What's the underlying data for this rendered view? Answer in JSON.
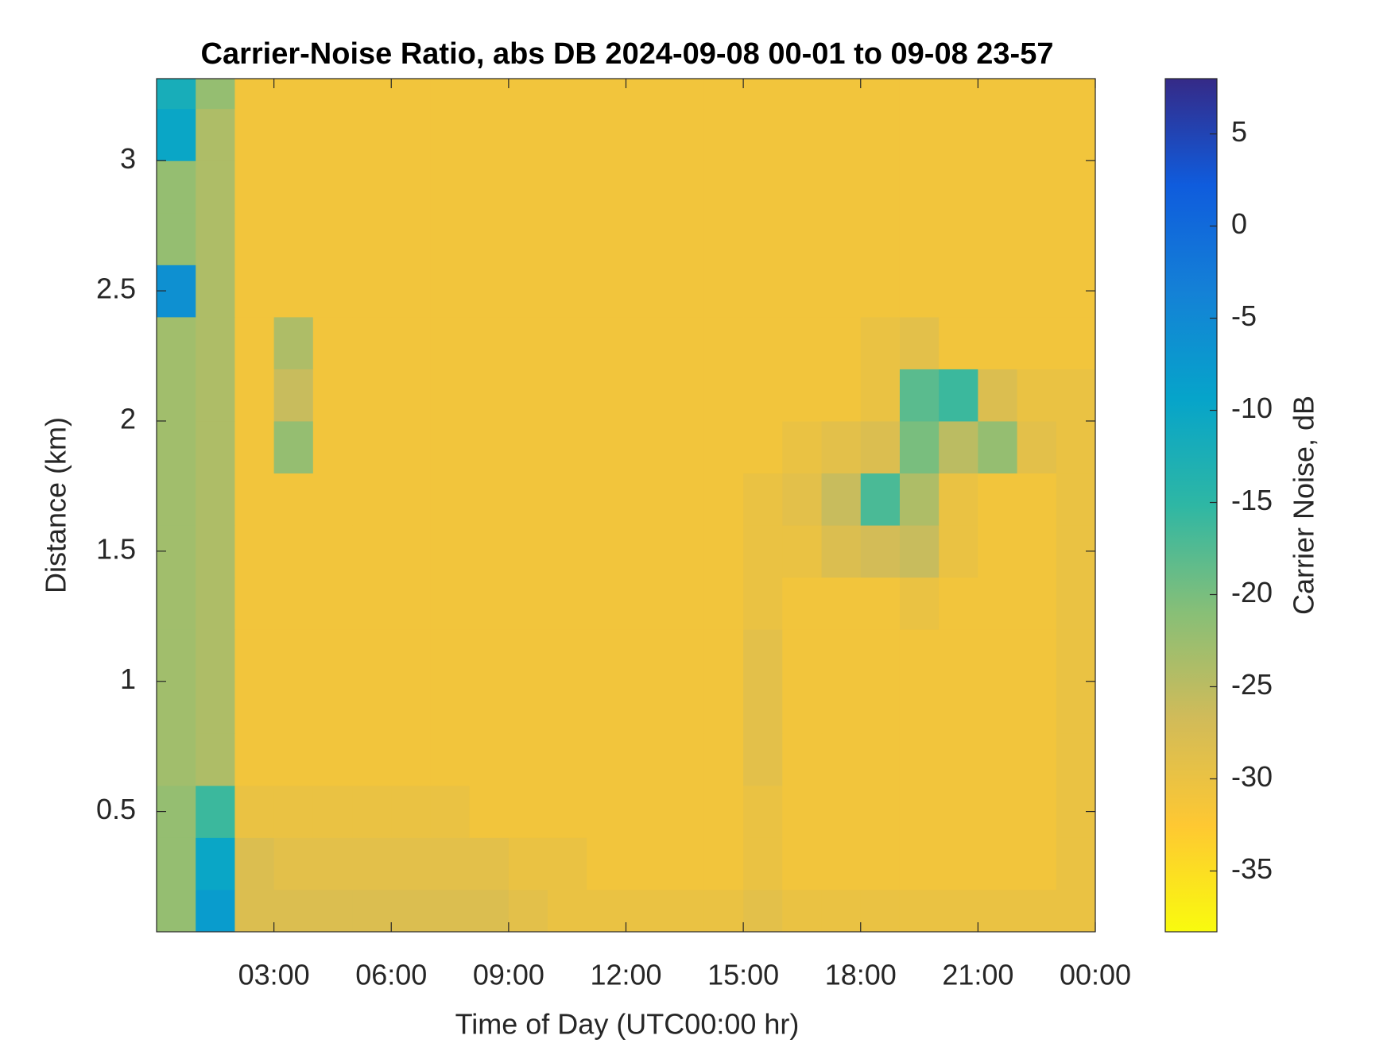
{
  "chart_data": {
    "type": "heatmap",
    "title": "Carrier-Noise Ratio, abs DB 2024-09-08 00-01 to 09-08 23-57",
    "x_label": "Time of Day (UTC00:00 hr)",
    "y_label": "Distance (km)",
    "colorbar_label": "Carrier Noise, dB",
    "x": [
      0.5,
      1.5,
      2.5,
      3.5,
      4.5,
      5.5,
      6.5,
      7.5,
      8.5,
      9.5,
      10.5,
      11.5,
      12.5,
      13.5,
      14.5,
      15.5,
      16.5,
      17.5,
      18.5,
      19.5,
      20.5,
      21.5,
      22.5,
      23.5
    ],
    "y": [
      0.1,
      0.3,
      0.5,
      0.7,
      0.9,
      1.1,
      1.3,
      1.5,
      1.7,
      1.9,
      2.1,
      2.3,
      2.5,
      2.7,
      2.9,
      3.1,
      3.3
    ],
    "z": [
      [
        -22,
        -8,
        -28,
        -28,
        -28,
        -28,
        -28,
        -28,
        -28,
        -29,
        -30,
        -30,
        -30,
        -30,
        -30,
        -29,
        -30,
        -30,
        -30,
        -30,
        -30,
        -30,
        -30,
        -30
      ],
      [
        -22,
        -10,
        -28,
        -29,
        -29,
        -29,
        -29,
        -29,
        -29,
        -30,
        -30,
        -31,
        -31,
        -31,
        -31,
        -30,
        -31,
        -31,
        -31,
        -31,
        -31,
        -31,
        -31,
        -30
      ],
      [
        -22,
        -16,
        -30,
        -30,
        -30,
        -30,
        -30,
        -30,
        -31,
        -31,
        -31,
        -31,
        -31,
        -31,
        -31,
        -30,
        -31,
        -31,
        -31,
        -31,
        -31,
        -31,
        -31,
        -30
      ],
      [
        -23,
        -24,
        -31,
        -31,
        -31,
        -31,
        -31,
        -31,
        -31,
        -31,
        -31,
        -31,
        -31,
        -31,
        -31,
        -29,
        -31,
        -31,
        -31,
        -31,
        -31,
        -31,
        -31,
        -30
      ],
      [
        -23,
        -24,
        -31,
        -31,
        -31,
        -31,
        -31,
        -31,
        -31,
        -31,
        -31,
        -31,
        -31,
        -31,
        -31,
        -29,
        -31,
        -31,
        -31,
        -31,
        -31,
        -31,
        -31,
        -30
      ],
      [
        -23,
        -24,
        -31,
        -31,
        -31,
        -31,
        -31,
        -31,
        -31,
        -31,
        -31,
        -31,
        -31,
        -31,
        -31,
        -29,
        -31,
        -31,
        -31,
        -31,
        -31,
        -31,
        -31,
        -30
      ],
      [
        -23,
        -24,
        -31,
        -31,
        -31,
        -31,
        -31,
        -31,
        -31,
        -31,
        -31,
        -31,
        -31,
        -31,
        -31,
        -30,
        -31,
        -31,
        -31,
        -30,
        -31,
        -31,
        -31,
        -30
      ],
      [
        -23,
        -24,
        -31,
        -31,
        -31,
        -31,
        -31,
        -31,
        -31,
        -31,
        -31,
        -31,
        -31,
        -31,
        -31,
        -30,
        -30,
        -28,
        -27,
        -26,
        -30,
        -31,
        -31,
        -30
      ],
      [
        -23,
        -24,
        -31,
        -31,
        -31,
        -31,
        -31,
        -31,
        -31,
        -31,
        -31,
        -31,
        -31,
        -31,
        -31,
        -30,
        -29,
        -26,
        -17,
        -24,
        -30,
        -31,
        -31,
        -30
      ],
      [
        -23,
        -24,
        -31,
        -22,
        -31,
        -31,
        -31,
        -31,
        -31,
        -31,
        -31,
        -31,
        -31,
        -31,
        -31,
        -31,
        -30,
        -29,
        -28,
        -20,
        -25,
        -22,
        -29,
        -30
      ],
      [
        -23,
        -24,
        -31,
        -26,
        -31,
        -31,
        -31,
        -31,
        -31,
        -31,
        -31,
        -31,
        -31,
        -31,
        -31,
        -31,
        -31,
        -31,
        -30,
        -18,
        -16,
        -28,
        -30,
        -30
      ],
      [
        -23,
        -24,
        -31,
        -24,
        -31,
        -31,
        -31,
        -31,
        -31,
        -31,
        -31,
        -31,
        -31,
        -31,
        -31,
        -31,
        -31,
        -31,
        -30,
        -29,
        -31,
        -31,
        -31,
        -31
      ],
      [
        -6,
        -24,
        -31,
        -31,
        -31,
        -31,
        -31,
        -31,
        -31,
        -31,
        -31,
        -31,
        -31,
        -31,
        -31,
        -31,
        -31,
        -31,
        -31,
        -31,
        -31,
        -31,
        -31,
        -31
      ],
      [
        -22,
        -24,
        -31,
        -31,
        -31,
        -31,
        -31,
        -31,
        -31,
        -31,
        -31,
        -31,
        -31,
        -31,
        -31,
        -31,
        -31,
        -31,
        -31,
        -31,
        -31,
        -31,
        -31,
        -31
      ],
      [
        -22,
        -24,
        -31,
        -31,
        -31,
        -31,
        -31,
        -31,
        -31,
        -31,
        -31,
        -31,
        -31,
        -31,
        -31,
        -31,
        -31,
        -31,
        -31,
        -31,
        -31,
        -31,
        -31,
        -31
      ],
      [
        -10,
        -24,
        -31,
        -31,
        -31,
        -31,
        -31,
        -31,
        -31,
        -31,
        -31,
        -31,
        -31,
        -31,
        -31,
        -31,
        -31,
        -31,
        -31,
        -31,
        -31,
        -31,
        -31,
        -31
      ],
      [
        -12,
        -22,
        -31,
        -31,
        -31,
        -31,
        -31,
        -31,
        -31,
        -31,
        -31,
        -31,
        -31,
        -31,
        -31,
        -31,
        -31,
        -31,
        -31,
        -31,
        -31,
        -31,
        -31,
        -31
      ]
    ],
    "xlim": [
      0,
      24
    ],
    "xticks": [
      {
        "value": 3,
        "label": "03:00"
      },
      {
        "value": 6,
        "label": "06:00"
      },
      {
        "value": 9,
        "label": "09:00"
      },
      {
        "value": 12,
        "label": "12:00"
      },
      {
        "value": 15,
        "label": "15:00"
      },
      {
        "value": 18,
        "label": "18:00"
      },
      {
        "value": 21,
        "label": "21:00"
      },
      {
        "value": 24,
        "label": "00:00"
      }
    ],
    "ylim": [
      0.038,
      3.315
    ],
    "yticks": [
      0.5,
      1,
      1.5,
      2,
      2.5,
      3
    ],
    "clim": [
      -38.3,
      8
    ],
    "cticks": [
      5,
      0,
      -5,
      -10,
      -15,
      -20,
      -25,
      -30,
      -35
    ],
    "colormap": [
      "#f9fb0e",
      "#fec832",
      "#d1bb59",
      "#87bf77",
      "#2eb7a4",
      "#06a4ca",
      "#1481d6",
      "#0f5cdd",
      "#352a87"
    ]
  }
}
